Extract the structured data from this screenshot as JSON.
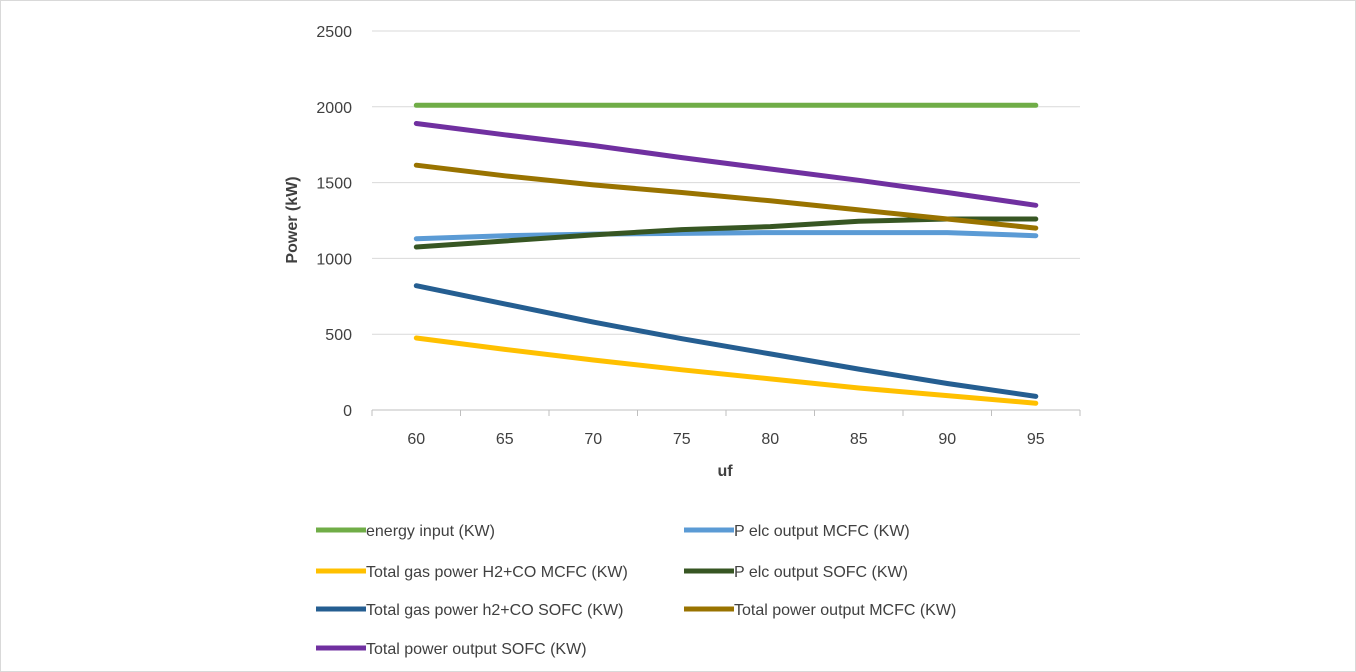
{
  "chart_data": {
    "type": "line",
    "title": "",
    "xlabel": "uf",
    "ylabel": "Power (kW)",
    "x": [
      60,
      65,
      70,
      75,
      80,
      85,
      90,
      95
    ],
    "xticks": [
      "60",
      "65",
      "70",
      "75",
      "80",
      "85",
      "90",
      "95"
    ],
    "yticks": [
      "0",
      "500",
      "1000",
      "1500",
      "2000",
      "2500"
    ],
    "ylim": [
      0,
      2500
    ],
    "grid": "horizontal",
    "legend": "bottom",
    "series": [
      {
        "name": "energy input (KW)",
        "color": "#70ad47",
        "values": [
          2010,
          2010,
          2010,
          2010,
          2010,
          2010,
          2010,
          2010
        ]
      },
      {
        "name": "P elc  output MCFC (KW)",
        "color": "#5b9bd5",
        "values": [
          1130,
          1150,
          1160,
          1165,
          1170,
          1170,
          1170,
          1150
        ]
      },
      {
        "name": "Total gas power H2+CO MCFC (KW)",
        "color": "#ffc000",
        "values": [
          475,
          400,
          330,
          265,
          205,
          145,
          95,
          45
        ]
      },
      {
        "name": "P elc output SOFC (KW)",
        "color": "#375623",
        "values": [
          1075,
          1115,
          1155,
          1190,
          1210,
          1245,
          1260,
          1260
        ]
      },
      {
        "name": "Total gas power  h2+CO SOFC (KW)",
        "color": "#255e91",
        "values": [
          820,
          700,
          580,
          470,
          370,
          270,
          175,
          90
        ]
      },
      {
        "name": "Total power output MCFC (KW)",
        "color": "#997300",
        "values": [
          1615,
          1545,
          1485,
          1435,
          1380,
          1320,
          1260,
          1200
        ]
      },
      {
        "name": "Total power output SOFC (KW)",
        "color": "#7030a0",
        "values": [
          1890,
          1815,
          1745,
          1665,
          1590,
          1515,
          1435,
          1350
        ]
      }
    ]
  }
}
